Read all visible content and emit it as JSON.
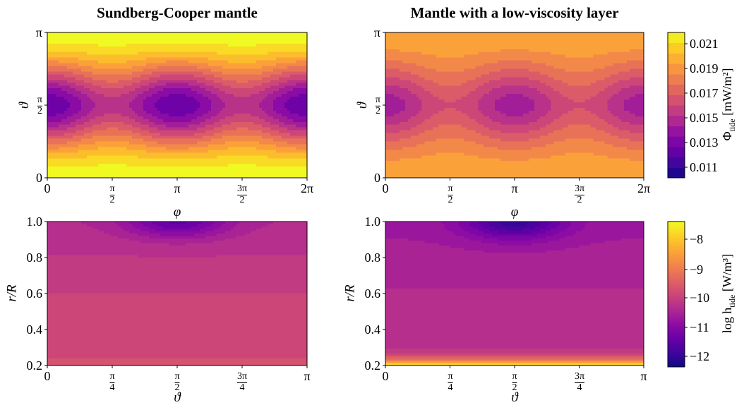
{
  "chart_data": [
    {
      "type": "heatmap",
      "panel": "top-left",
      "title": "Sundberg-Cooper mantle",
      "xlabel": "φ",
      "ylabel": "ϑ",
      "x_range": [
        0,
        6.2832
      ],
      "y_range": [
        0,
        3.1416
      ],
      "x_ticks": [
        "0",
        "π/2",
        "π",
        "3π/2",
        "2π"
      ],
      "y_ticks": [
        "0",
        "π/2",
        "π"
      ],
      "colormap": "plasma",
      "colorbar_ref": "top",
      "value_range": [
        0.0102,
        0.0222
      ],
      "minima_at_phi": [
        0,
        3.1416,
        6.2832
      ],
      "maxima_at_theta": [
        0,
        3.1416
      ]
    },
    {
      "type": "heatmap",
      "panel": "top-right",
      "title": "Mantle with a low-viscosity layer",
      "xlabel": "φ",
      "ylabel": "ϑ",
      "x_range": [
        0,
        6.2832
      ],
      "y_range": [
        0,
        3.1416
      ],
      "x_ticks": [
        "0",
        "π/2",
        "π",
        "3π/2",
        "2π"
      ],
      "y_ticks": [
        "0",
        "π/2",
        "π"
      ],
      "colormap": "plasma",
      "colorbar_ref": "top",
      "value_range": [
        0.0118,
        0.0215
      ]
    },
    {
      "type": "heatmap",
      "panel": "bottom-left",
      "xlabel": "ϑ",
      "ylabel": "r/R",
      "x_range": [
        0,
        3.1416
      ],
      "y_range": [
        0.2,
        1.0
      ],
      "x_ticks": [
        "0",
        "π/4",
        "π/2",
        "3π/4",
        "π"
      ],
      "y_ticks": [
        "0.2",
        "0.4",
        "0.6",
        "0.8",
        "1.0"
      ],
      "colormap": "plasma",
      "colorbar_ref": "bottom",
      "value_range": [
        -12.1,
        -10.2
      ]
    },
    {
      "type": "heatmap",
      "panel": "bottom-right",
      "xlabel": "ϑ",
      "ylabel": "r/R",
      "x_range": [
        0,
        3.1416
      ],
      "y_range": [
        0.2,
        1.0
      ],
      "x_ticks": [
        "0",
        "π/4",
        "π/2",
        "3π/4",
        "π"
      ],
      "y_ticks": [
        "0.2",
        "0.4",
        "0.6",
        "0.8",
        "1.0"
      ],
      "colormap": "plasma",
      "colorbar_ref": "bottom",
      "value_range": [
        -12.2,
        -7.6
      ],
      "note_region": "high values near r/R = 0.2"
    }
  ],
  "colorbars": {
    "top": {
      "label": "Φtide [mW/m²]",
      "label_main": "Φ",
      "label_sub": "tide",
      "label_unit": "[mW/m²]",
      "range": [
        0.0102,
        0.0222
      ],
      "ticks": [
        "0.011",
        "0.013",
        "0.015",
        "0.017",
        "0.019",
        "0.021"
      ],
      "tick_values": [
        0.011,
        0.013,
        0.015,
        0.017,
        0.019,
        0.021
      ],
      "levels": 14
    },
    "bottom": {
      "label": "log htide [W/m³]",
      "label_main": "log h",
      "label_sub": "tide",
      "label_unit": "[W/m³]",
      "range": [
        -12.4,
        -7.4
      ],
      "ticks": [
        "−8",
        "−9",
        "−10",
        "−11",
        "−12"
      ],
      "tick_values": [
        -8,
        -9,
        -10,
        -11,
        -12
      ]
    }
  }
}
